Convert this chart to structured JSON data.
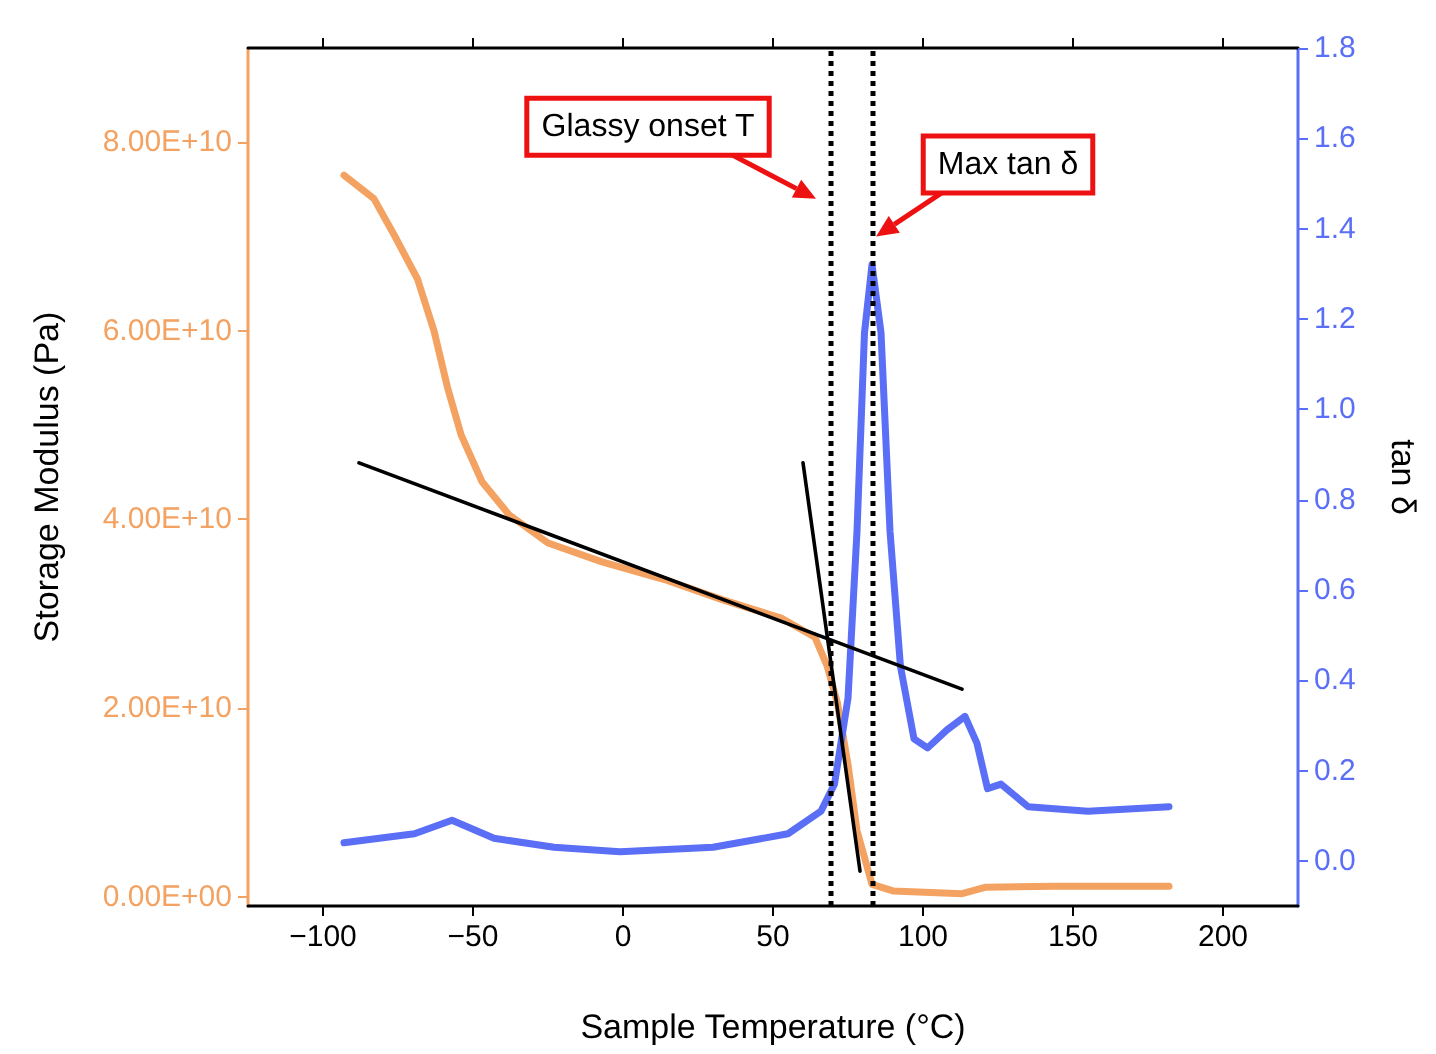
{
  "chart_data": {
    "type": "line",
    "xlabel": "Sample Temperature (°C)",
    "ylabel": "Storage Modulus (Pa)",
    "y2label": "tan δ",
    "xlim": [
      -125,
      225
    ],
    "xticks": [
      {
        "value": -100,
        "label": "−100"
      },
      {
        "value": -50,
        "label": "−50"
      },
      0,
      50,
      100,
      150,
      200
    ],
    "ylim": [
      -1000000000,
      90000000000
    ],
    "yticks": [
      {
        "value": 0,
        "label": "0.00E+00"
      },
      {
        "value": 20000000000,
        "label": "2.00E+10"
      },
      {
        "value": 40000000000,
        "label": "4.00E+10"
      },
      {
        "value": 60000000000,
        "label": "6.00E+10"
      },
      {
        "value": 80000000000,
        "label": "8.00E+10"
      }
    ],
    "y2lim": [
      -0.1,
      1.8
    ],
    "y2ticks": [
      {
        "value": 0,
        "label": "0.0"
      },
      0.2,
      0.4,
      0.6,
      0.8,
      {
        "value": 1,
        "label": "1.0"
      },
      1.2,
      1.4,
      1.6,
      1.8
    ],
    "grid": false,
    "marker": "none",
    "line_style": "solid",
    "series": [
      {
        "color": "#f4a261",
        "x": [
          -93,
          -83,
          -76,
          -68.5,
          -63,
          -58.5,
          -54,
          -47,
          -38,
          -25,
          -7,
          15,
          33,
          53,
          64,
          68,
          71.5,
          75,
          78,
          83,
          90,
          113,
          121,
          144,
          182
        ],
        "values": [
          76500000000,
          74000000000,
          70000000000,
          65500000000,
          60000000000,
          54000000000,
          49000000000,
          44000000000,
          40500000000,
          37500000000,
          35500000000,
          33500000000,
          31500000000,
          29500000000,
          27500000000,
          24500000000,
          20500000000,
          14000000000,
          7000000000,
          1300000000,
          600000000,
          300000000,
          1000000000,
          1100000000,
          1100000000
        ]
      },
      {
        "color": "#5a6ff5",
        "axis": "y2",
        "x": [
          -93,
          -69.5,
          -57,
          -43,
          -23,
          -1,
          30,
          55,
          66,
          70.5,
          75,
          78,
          80.5,
          83,
          86,
          89,
          92.5,
          97,
          101.5,
          108,
          114,
          118,
          121.5,
          126,
          135,
          155,
          182
        ],
        "values": [
          0.04,
          0.06,
          0.09,
          0.05,
          0.03,
          0.02,
          0.03,
          0.06,
          0.11,
          0.17,
          0.36,
          0.73,
          1.17,
          1.32,
          1.17,
          0.73,
          0.43,
          0.27,
          0.25,
          0.29,
          0.32,
          0.26,
          0.16,
          0.17,
          0.12,
          0.11,
          0.12
        ]
      },
      {
        "color": "#000000",
        "x": [
          -88,
          113
        ],
        "values": [
          46000000000,
          22000000000
        ]
      },
      {
        "color": "#000000",
        "x": [
          60,
          79
        ],
        "values": [
          46000000000,
          2700000000
        ]
      }
    ],
    "ref_lines": [
      {
        "axis": "x",
        "value": 69,
        "color": "#000000",
        "line_style": "dotted"
      },
      {
        "axis": "x",
        "value": 83,
        "color": "#000000",
        "line_style": "dotted"
      }
    ],
    "annotations": [
      {
        "text": "Glassy onset T",
        "x": 69,
        "y": 74000000000
      },
      {
        "text": "Max tan δ",
        "x": 83,
        "y": 70000000000
      }
    ]
  }
}
